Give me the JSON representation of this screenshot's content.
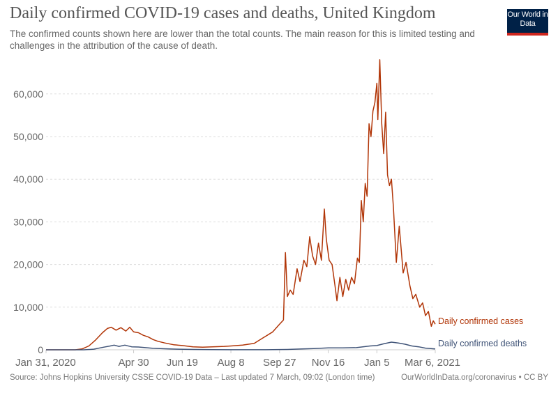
{
  "header": {
    "title": "Daily confirmed COVID-19 cases and deaths, United Kingdom",
    "subtitle": "The confirmed counts shown here are lower than the total counts. The main reason for this is limited testing and challenges in the attribution of the cause of death.",
    "logo": "Our World in Data"
  },
  "footer": {
    "source": "Source: Johns Hopkins University CSSE COVID-19 Data – Last updated 7 March, 09:02 (London time)",
    "license": "OurWorldInData.org/coronavirus • CC BY"
  },
  "chart_data": {
    "type": "line",
    "title": "Daily confirmed COVID-19 cases and deaths, United Kingdom",
    "xlim": [
      "2020-01-31",
      "2021-03-06"
    ],
    "ylim": [
      0,
      68000
    ],
    "grid": "horizontal-dashed",
    "legend": "inline-right",
    "x_ticks": [
      {
        "date": "2020-01-31",
        "label": "Jan 31, 2020"
      },
      {
        "date": "2020-04-30",
        "label": "Apr 30"
      },
      {
        "date": "2020-06-19",
        "label": "Jun 19"
      },
      {
        "date": "2020-08-08",
        "label": "Aug 8"
      },
      {
        "date": "2020-09-27",
        "label": "Sep 27"
      },
      {
        "date": "2020-11-16",
        "label": "Nov 16"
      },
      {
        "date": "2021-01-05",
        "label": "Jan 5"
      },
      {
        "date": "2021-03-06",
        "label": "Mar 6, 2021"
      }
    ],
    "y_ticks": [
      {
        "v": 0,
        "label": "0"
      },
      {
        "v": 10000,
        "label": "10,000"
      },
      {
        "v": 20000,
        "label": "20,000"
      },
      {
        "v": 30000,
        "label": "30,000"
      },
      {
        "v": 40000,
        "label": "40,000"
      },
      {
        "v": 50000,
        "label": "50,000"
      },
      {
        "v": 60000,
        "label": "60,000"
      }
    ],
    "series": [
      {
        "name": "Daily confirmed cases",
        "color": "#b13507",
        "points": [
          [
            "2020-01-31",
            0
          ],
          [
            "2020-03-01",
            0
          ],
          [
            "2020-03-08",
            200
          ],
          [
            "2020-03-15",
            900
          ],
          [
            "2020-03-22",
            2300
          ],
          [
            "2020-03-29",
            4000
          ],
          [
            "2020-04-03",
            5000
          ],
          [
            "2020-04-07",
            5300
          ],
          [
            "2020-04-12",
            4600
          ],
          [
            "2020-04-17",
            5200
          ],
          [
            "2020-04-22",
            4400
          ],
          [
            "2020-04-26",
            5300
          ],
          [
            "2020-04-30",
            4200
          ],
          [
            "2020-05-05",
            4000
          ],
          [
            "2020-05-10",
            3400
          ],
          [
            "2020-05-15",
            3000
          ],
          [
            "2020-05-20",
            2400
          ],
          [
            "2020-05-25",
            2000
          ],
          [
            "2020-06-01",
            1600
          ],
          [
            "2020-06-10",
            1200
          ],
          [
            "2020-06-19",
            1000
          ],
          [
            "2020-06-30",
            700
          ],
          [
            "2020-07-10",
            600
          ],
          [
            "2020-07-20",
            700
          ],
          [
            "2020-08-01",
            800
          ],
          [
            "2020-08-08",
            900
          ],
          [
            "2020-08-20",
            1100
          ],
          [
            "2020-09-01",
            1500
          ],
          [
            "2020-09-10",
            2800
          ],
          [
            "2020-09-20",
            4200
          ],
          [
            "2020-09-27",
            6000
          ],
          [
            "2020-10-01",
            7000
          ],
          [
            "2020-10-03",
            22800
          ],
          [
            "2020-10-05",
            12500
          ],
          [
            "2020-10-08",
            14000
          ],
          [
            "2020-10-11",
            13000
          ],
          [
            "2020-10-15",
            19000
          ],
          [
            "2020-10-18",
            16000
          ],
          [
            "2020-10-22",
            21000
          ],
          [
            "2020-10-25",
            19500
          ],
          [
            "2020-10-28",
            26500
          ],
          [
            "2020-10-31",
            22000
          ],
          [
            "2020-11-03",
            20000
          ],
          [
            "2020-11-06",
            25000
          ],
          [
            "2020-11-09",
            21000
          ],
          [
            "2020-11-12",
            33000
          ],
          [
            "2020-11-14",
            26000
          ],
          [
            "2020-11-17",
            21000
          ],
          [
            "2020-11-20",
            20000
          ],
          [
            "2020-11-23",
            15000
          ],
          [
            "2020-11-25",
            11500
          ],
          [
            "2020-11-28",
            17000
          ],
          [
            "2020-12-01",
            12500
          ],
          [
            "2020-12-04",
            16500
          ],
          [
            "2020-12-07",
            14000
          ],
          [
            "2020-12-10",
            17000
          ],
          [
            "2020-12-13",
            15500
          ],
          [
            "2020-12-16",
            21500
          ],
          [
            "2020-12-18",
            20500
          ],
          [
            "2020-12-20",
            35000
          ],
          [
            "2020-12-22",
            30000
          ],
          [
            "2020-12-24",
            39000
          ],
          [
            "2020-12-26",
            36000
          ],
          [
            "2020-12-28",
            53000
          ],
          [
            "2020-12-30",
            50000
          ],
          [
            "2021-01-01",
            56000
          ],
          [
            "2021-01-03",
            58000
          ],
          [
            "2021-01-05",
            62500
          ],
          [
            "2021-01-06",
            54000
          ],
          [
            "2021-01-08",
            68000
          ],
          [
            "2021-01-10",
            53000
          ],
          [
            "2021-01-12",
            46000
          ],
          [
            "2021-01-14",
            55700
          ],
          [
            "2021-01-16",
            41000
          ],
          [
            "2021-01-18",
            38500
          ],
          [
            "2021-01-20",
            40000
          ],
          [
            "2021-01-22",
            33500
          ],
          [
            "2021-01-25",
            20500
          ],
          [
            "2021-01-28",
            29000
          ],
          [
            "2021-02-01",
            18000
          ],
          [
            "2021-02-04",
            20500
          ],
          [
            "2021-02-08",
            15000
          ],
          [
            "2021-02-11",
            12000
          ],
          [
            "2021-02-14",
            13000
          ],
          [
            "2021-02-18",
            10000
          ],
          [
            "2021-02-21",
            11000
          ],
          [
            "2021-02-24",
            8000
          ],
          [
            "2021-02-27",
            9000
          ],
          [
            "2021-03-02",
            5500
          ],
          [
            "2021-03-04",
            6800
          ],
          [
            "2021-03-06",
            6000
          ]
        ]
      },
      {
        "name": "Daily confirmed deaths",
        "color": "#3f5377",
        "points": [
          [
            "2020-01-31",
            0
          ],
          [
            "2020-03-10",
            0
          ],
          [
            "2020-03-20",
            150
          ],
          [
            "2020-03-30",
            600
          ],
          [
            "2020-04-06",
            900
          ],
          [
            "2020-04-10",
            1100
          ],
          [
            "2020-04-15",
            800
          ],
          [
            "2020-04-21",
            1100
          ],
          [
            "2020-04-28",
            700
          ],
          [
            "2020-05-05",
            650
          ],
          [
            "2020-05-12",
            500
          ],
          [
            "2020-05-20",
            350
          ],
          [
            "2020-06-01",
            250
          ],
          [
            "2020-06-15",
            150
          ],
          [
            "2020-07-01",
            80
          ],
          [
            "2020-07-20",
            40
          ],
          [
            "2020-08-08",
            10
          ],
          [
            "2020-09-01",
            10
          ],
          [
            "2020-09-20",
            30
          ],
          [
            "2020-10-05",
            80
          ],
          [
            "2020-10-20",
            200
          ],
          [
            "2020-11-01",
            300
          ],
          [
            "2020-11-16",
            450
          ],
          [
            "2020-12-01",
            450
          ],
          [
            "2020-12-15",
            500
          ],
          [
            "2020-12-29",
            900
          ],
          [
            "2021-01-05",
            1000
          ],
          [
            "2021-01-12",
            1400
          ],
          [
            "2021-01-20",
            1800
          ],
          [
            "2021-01-27",
            1600
          ],
          [
            "2021-02-03",
            1300
          ],
          [
            "2021-02-10",
            900
          ],
          [
            "2021-02-17",
            700
          ],
          [
            "2021-02-24",
            400
          ],
          [
            "2021-03-06",
            200
          ]
        ]
      }
    ]
  }
}
